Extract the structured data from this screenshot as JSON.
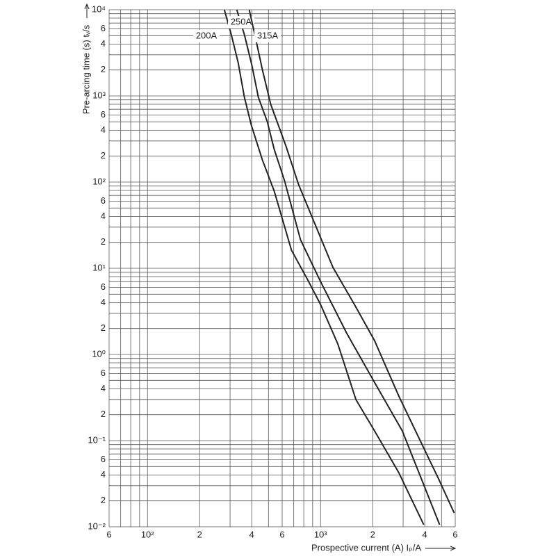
{
  "chart_data": {
    "type": "line",
    "ylabel": "Pre-arcing time (s) tᵥ/s",
    "xlabel": "Prospective current (A) Iₚ/A",
    "xscale": "log",
    "yscale": "log",
    "grid": true,
    "xlim": [
      60,
      6000
    ],
    "ylim": [
      0.01,
      10000
    ],
    "xticks": [
      {
        "value": 60,
        "label": "6"
      },
      {
        "value": 100,
        "label": "10²"
      },
      {
        "value": 200,
        "label": "2"
      },
      {
        "value": 400,
        "label": "4"
      },
      {
        "value": 600,
        "label": "6"
      },
      {
        "value": 1000,
        "label": "10³"
      },
      {
        "value": 2000,
        "label": "2"
      },
      {
        "value": 4000,
        "label": "4"
      },
      {
        "value": 6000,
        "label": "6"
      }
    ],
    "yticks": [
      {
        "value": 0.01,
        "label": "10⁻²"
      },
      {
        "value": 0.02,
        "label": "2"
      },
      {
        "value": 0.04,
        "label": "4"
      },
      {
        "value": 0.06,
        "label": "6"
      },
      {
        "value": 0.1,
        "label": "10⁻¹"
      },
      {
        "value": 0.2,
        "label": "2"
      },
      {
        "value": 0.4,
        "label": "4"
      },
      {
        "value": 0.6,
        "label": "6"
      },
      {
        "value": 1,
        "label": "10⁰"
      },
      2,
      4,
      6,
      {
        "value": 10,
        "label": "10¹"
      },
      {
        "value": 20,
        "label": "2"
      },
      {
        "value": 40,
        "label": "4"
      },
      {
        "value": 60,
        "label": "6"
      },
      {
        "value": 100,
        "label": "10²"
      },
      {
        "value": 200,
        "label": "2"
      },
      {
        "value": 400,
        "label": "4"
      },
      {
        "value": 600,
        "label": "6"
      },
      {
        "value": 1000,
        "label": "10³"
      },
      {
        "value": 2000,
        "label": "2"
      },
      {
        "value": 4000,
        "label": "4"
      },
      {
        "value": 6000,
        "label": "6"
      },
      {
        "value": 10000,
        "label": "10⁴"
      }
    ],
    "xgrid": [
      60,
      70,
      80,
      90,
      100,
      200,
      300,
      400,
      500,
      600,
      700,
      800,
      900,
      1000,
      2000,
      3000,
      4000,
      5000,
      6000
    ],
    "ygrid": [
      0.01,
      0.02,
      0.03,
      0.04,
      0.05,
      0.06,
      0.07,
      0.08,
      0.09,
      0.1,
      0.2,
      0.3,
      0.4,
      0.5,
      0.6,
      0.7,
      0.8,
      0.9,
      1,
      2,
      3,
      4,
      5,
      6,
      7,
      8,
      9,
      10,
      20,
      30,
      40,
      50,
      60,
      70,
      80,
      90,
      100,
      200,
      300,
      400,
      500,
      600,
      700,
      800,
      900,
      1000,
      2000,
      3000,
      4000,
      5000,
      6000,
      7000,
      8000,
      9000,
      10000
    ],
    "series": [
      {
        "name": "200A",
        "color": "#222222",
        "x": [
          278,
          305,
          334,
          363,
          398,
          461,
          540,
          679,
          832,
          1000,
          1259,
          1600,
          2050,
          2830,
          3945
        ],
        "values": [
          10000,
          5130,
          2440,
          964,
          458,
          181,
          78.5,
          16.2,
          7.7,
          3.8,
          1.32,
          0.3,
          0.13,
          0.0426,
          0.0106
        ]
      },
      {
        "name": "250A",
        "color": "#222222",
        "x": [
          328,
          363,
          402,
          437,
          492,
          540,
          619,
          766,
          1000,
          1419,
          2050,
          2965,
          4875
        ],
        "values": [
          10000,
          5130,
          2220,
          964,
          504,
          239,
          104,
          21.4,
          7.0,
          1.75,
          0.475,
          0.13,
          0.0106
        ]
      },
      {
        "name": "315A",
        "color": "#222222",
        "x": [
          387,
          417,
          461,
          515,
          631,
          745,
          938,
          1180,
          1585,
          2050,
          2830,
          4830,
          5915
        ],
        "values": [
          10000,
          5130,
          2020,
          800,
          262,
          94.6,
          31,
          10.2,
          3.67,
          1.45,
          0.33,
          0.0353,
          0.0145
        ]
      }
    ]
  }
}
